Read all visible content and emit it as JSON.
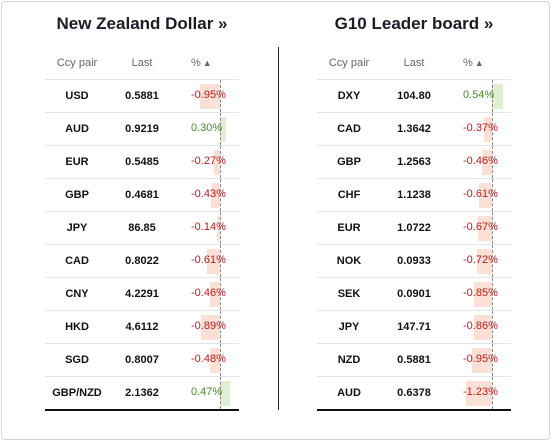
{
  "left_panel": {
    "title": "New Zealand Dollar »",
    "headers": {
      "pair": "Ccy pair",
      "last": "Last",
      "pct": "%",
      "sort_icon": "▲"
    },
    "rows": [
      {
        "pair": "USD",
        "last": "0.5881",
        "pct_text": "-0.95%",
        "pct": -0.95
      },
      {
        "pair": "AUD",
        "last": "0.9219",
        "pct_text": "0.30%",
        "pct": 0.3
      },
      {
        "pair": "EUR",
        "last": "0.5485",
        "pct_text": "-0.27%",
        "pct": -0.27
      },
      {
        "pair": "GBP",
        "last": "0.4681",
        "pct_text": "-0.43%",
        "pct": -0.43
      },
      {
        "pair": "JPY",
        "last": "86.85",
        "pct_text": "-0.14%",
        "pct": -0.14
      },
      {
        "pair": "CAD",
        "last": "0.8022",
        "pct_text": "-0.61%",
        "pct": -0.61
      },
      {
        "pair": "CNY",
        "last": "4.2291",
        "pct_text": "-0.46%",
        "pct": -0.46
      },
      {
        "pair": "HKD",
        "last": "4.6112",
        "pct_text": "-0.89%",
        "pct": -0.89
      },
      {
        "pair": "SGD",
        "last": "0.8007",
        "pct_text": "-0.48%",
        "pct": -0.48
      },
      {
        "pair": "GBP/NZD",
        "last": "2.1362",
        "pct_text": "0.47%",
        "pct": 0.47
      }
    ]
  },
  "right_panel": {
    "title": "G10 Leader board »",
    "headers": {
      "pair": "Ccy pair",
      "last": "Last",
      "pct": "%",
      "sort_icon": "▲"
    },
    "rows": [
      {
        "pair": "DXY",
        "last": "104.80",
        "pct_text": "0.54%",
        "pct": 0.54
      },
      {
        "pair": "CAD",
        "last": "1.3642",
        "pct_text": "-0.37%",
        "pct": -0.37
      },
      {
        "pair": "GBP",
        "last": "1.2563",
        "pct_text": "-0.46%",
        "pct": -0.46
      },
      {
        "pair": "CHF",
        "last": "1.1238",
        "pct_text": "-0.61%",
        "pct": -0.61
      },
      {
        "pair": "EUR",
        "last": "1.0722",
        "pct_text": "-0.67%",
        "pct": -0.67
      },
      {
        "pair": "NOK",
        "last": "0.0933",
        "pct_text": "-0.72%",
        "pct": -0.72
      },
      {
        "pair": "SEK",
        "last": "0.0901",
        "pct_text": "-0.85%",
        "pct": -0.85
      },
      {
        "pair": "JPY",
        "last": "147.71",
        "pct_text": "-0.86%",
        "pct": -0.86
      },
      {
        "pair": "NZD",
        "last": "0.5881",
        "pct_text": "-0.95%",
        "pct": -0.95
      },
      {
        "pair": "AUD",
        "last": "0.6378",
        "pct_text": "-1.23%",
        "pct": -1.23
      }
    ]
  },
  "colors": {
    "negative_text": "#c0191a",
    "positive_text": "#4a8a26",
    "negative_bar": "#fbe0d6",
    "positive_bar": "#dff0d2"
  }
}
